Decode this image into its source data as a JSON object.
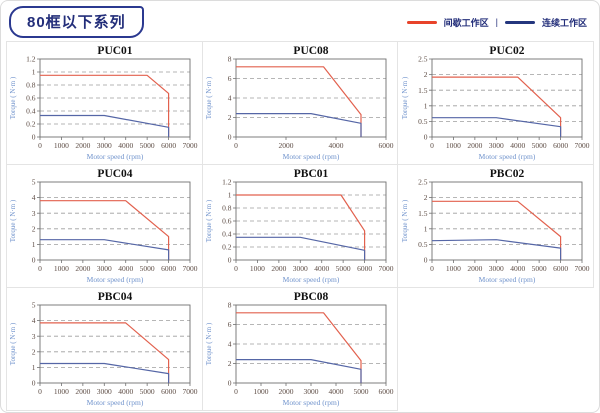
{
  "header": {
    "series_badge": "80框以下系列",
    "legend": {
      "intermittent_label": "间歇工作区",
      "separator": "|",
      "continuous_label": "连续工作区",
      "intermittent_color": "#e8432a",
      "continuous_color": "#24367e"
    }
  },
  "chart_style": {
    "intermittent_color": "#e2614e",
    "continuous_color": "#5566a6",
    "grid_color": "#9e9e9e",
    "axis_color": "#707070",
    "tick_label_color": "#5c4b43",
    "axis_label_color": "#7093cc",
    "title_color": "#111111"
  },
  "chart_data": [
    {
      "type": "line",
      "title": "PUC01",
      "xlabel": "Motor speed (rpm)",
      "ylabel": "Torque ( N·m )",
      "xticks": [
        "0",
        "1000",
        "2000",
        "3000",
        "4000",
        "5000",
        "6000",
        "7000"
      ],
      "yticks": [
        "0",
        "0.2",
        "0.4",
        "0.6",
        "0.8",
        "1",
        "1.2"
      ],
      "xlim": [
        0,
        7000
      ],
      "ylim": [
        0,
        1.2
      ],
      "grid": "horizontal-dashed",
      "legend_position": "none",
      "series": [
        {
          "name": "间歇工作区",
          "points": [
            [
              0,
              0.95
            ],
            [
              5000,
              0.95
            ],
            [
              6000,
              0.67
            ],
            [
              6000,
              0
            ]
          ]
        },
        {
          "name": "连续工作区",
          "points": [
            [
              0,
              0.33
            ],
            [
              3000,
              0.33
            ],
            [
              6000,
              0.15
            ],
            [
              6000,
              0
            ]
          ]
        }
      ]
    },
    {
      "type": "line",
      "title": "PUC08",
      "xlabel": "Motor speed (rpm)",
      "ylabel": "Torque ( N·m )",
      "xticks": [
        "0",
        "2000",
        "4000",
        "6000"
      ],
      "yticks": [
        "0",
        "2",
        "4",
        "6",
        "8"
      ],
      "xlim": [
        0,
        6000
      ],
      "ylim": [
        0,
        8
      ],
      "grid": "horizontal-dashed",
      "legend_position": "none",
      "series": [
        {
          "name": "间歇工作区",
          "points": [
            [
              0,
              7.2
            ],
            [
              3500,
              7.2
            ],
            [
              5000,
              2.3
            ],
            [
              5000,
              0
            ]
          ]
        },
        {
          "name": "连续工作区",
          "points": [
            [
              0,
              2.4
            ],
            [
              3000,
              2.4
            ],
            [
              5000,
              1.4
            ],
            [
              5000,
              0
            ]
          ]
        }
      ]
    },
    {
      "type": "line",
      "title": "PUC02",
      "xlabel": "Motor speed (rpm)",
      "ylabel": "Torque ( N·m )",
      "xticks": [
        "0",
        "1000",
        "2000",
        "3000",
        "4000",
        "5000",
        "6000",
        "7000"
      ],
      "yticks": [
        "0",
        "0.5",
        "1",
        "1.5",
        "2",
        "2.5"
      ],
      "xlim": [
        0,
        7000
      ],
      "ylim": [
        0,
        2.5
      ],
      "grid": "horizontal-dashed",
      "legend_position": "none",
      "series": [
        {
          "name": "间歇工作区",
          "points": [
            [
              0,
              1.92
            ],
            [
              4000,
              1.92
            ],
            [
              6000,
              0.62
            ],
            [
              6000,
              0
            ]
          ]
        },
        {
          "name": "连续工作区",
          "points": [
            [
              0,
              0.62
            ],
            [
              3000,
              0.62
            ],
            [
              6000,
              0.33
            ],
            [
              6000,
              0
            ]
          ]
        }
      ]
    },
    {
      "type": "line",
      "title": "PUC04",
      "xlabel": "Motor speed (rpm)",
      "ylabel": "Torque ( N·m )",
      "xticks": [
        "0",
        "1000",
        "2000",
        "3000",
        "4000",
        "5000",
        "6000",
        "7000"
      ],
      "yticks": [
        "0",
        "1",
        "2",
        "3",
        "4",
        "5"
      ],
      "xlim": [
        0,
        7000
      ],
      "ylim": [
        0,
        5
      ],
      "grid": "horizontal-dashed",
      "legend_position": "none",
      "series": [
        {
          "name": "间歇工作区",
          "points": [
            [
              0,
              3.8
            ],
            [
              4000,
              3.8
            ],
            [
              6000,
              1.5
            ],
            [
              6000,
              0
            ]
          ]
        },
        {
          "name": "连续工作区",
          "points": [
            [
              0,
              1.3
            ],
            [
              3000,
              1.3
            ],
            [
              6000,
              0.65
            ],
            [
              6000,
              0
            ]
          ]
        }
      ]
    },
    {
      "type": "line",
      "title": "PBC01",
      "xlabel": "Motor speed (rpm)",
      "ylabel": "Torque ( N·m )",
      "xticks": [
        "0",
        "1000",
        "2000",
        "3000",
        "4000",
        "5000",
        "6000",
        "7000"
      ],
      "yticks": [
        "0",
        "0.2",
        "0.4",
        "0.6",
        "0.8",
        "1",
        "1.2"
      ],
      "xlim": [
        0,
        7000
      ],
      "ylim": [
        0,
        1.2
      ],
      "grid": "horizontal-dashed",
      "legend_position": "none",
      "series": [
        {
          "name": "间歇工作区",
          "points": [
            [
              0,
              1.0
            ],
            [
              4900,
              1.0
            ],
            [
              6000,
              0.45
            ],
            [
              6000,
              0
            ]
          ]
        },
        {
          "name": "连续工作区",
          "points": [
            [
              0,
              0.35
            ],
            [
              3000,
              0.35
            ],
            [
              6000,
              0.15
            ],
            [
              6000,
              0
            ]
          ]
        }
      ]
    },
    {
      "type": "line",
      "title": "PBC02",
      "xlabel": "Motor speed (rpm)",
      "ylabel": "Torque ( N·m )",
      "xticks": [
        "0",
        "1000",
        "2000",
        "3000",
        "4000",
        "5000",
        "6000",
        "7000"
      ],
      "yticks": [
        "0",
        "0.5",
        "1",
        "1.5",
        "2",
        "2.5"
      ],
      "xlim": [
        0,
        7000
      ],
      "ylim": [
        0,
        2.5
      ],
      "grid": "horizontal-dashed",
      "legend_position": "none",
      "series": [
        {
          "name": "间歇工作区",
          "points": [
            [
              0,
              1.88
            ],
            [
              4000,
              1.88
            ],
            [
              6000,
              0.75
            ],
            [
              6000,
              0
            ]
          ]
        },
        {
          "name": "连续工作区",
          "points": [
            [
              0,
              0.62
            ],
            [
              3000,
              0.65
            ],
            [
              6000,
              0.38
            ],
            [
              6000,
              0
            ]
          ]
        }
      ]
    },
    {
      "type": "line",
      "title": "PBC04",
      "xlabel": "Motor speed (rpm)",
      "ylabel": "Torque ( N·m )",
      "xticks": [
        "0",
        "1000",
        "2000",
        "3000",
        "4000",
        "5000",
        "6000",
        "7000"
      ],
      "yticks": [
        "0",
        "1",
        "2",
        "3",
        "4",
        "5"
      ],
      "xlim": [
        0,
        7000
      ],
      "ylim": [
        0,
        5
      ],
      "grid": "horizontal-dashed",
      "legend_position": "none",
      "series": [
        {
          "name": "间歇工作区",
          "points": [
            [
              0,
              3.85
            ],
            [
              4000,
              3.85
            ],
            [
              6000,
              1.5
            ],
            [
              6000,
              0
            ]
          ]
        },
        {
          "name": "连续工作区",
          "points": [
            [
              0,
              1.25
            ],
            [
              3000,
              1.25
            ],
            [
              6000,
              0.6
            ],
            [
              6000,
              0
            ]
          ]
        }
      ]
    },
    {
      "type": "line",
      "title": "PBC08",
      "xlabel": "Motor speed (rpm)",
      "ylabel": "Torque ( N·m )",
      "xticks": [
        "0",
        "1000",
        "2000",
        "3000",
        "4000",
        "5000",
        "6000"
      ],
      "yticks": [
        "0",
        "2",
        "4",
        "6",
        "8"
      ],
      "xlim": [
        0,
        6000
      ],
      "ylim": [
        0,
        8
      ],
      "grid": "horizontal-dashed",
      "legend_position": "none",
      "series": [
        {
          "name": "间歇工作区",
          "points": [
            [
              0,
              7.2
            ],
            [
              3500,
              7.2
            ],
            [
              5000,
              2.3
            ],
            [
              5000,
              0
            ]
          ]
        },
        {
          "name": "连续工作区",
          "points": [
            [
              0,
              2.4
            ],
            [
              3000,
              2.4
            ],
            [
              5000,
              1.4
            ],
            [
              5000,
              0
            ]
          ]
        }
      ]
    }
  ]
}
